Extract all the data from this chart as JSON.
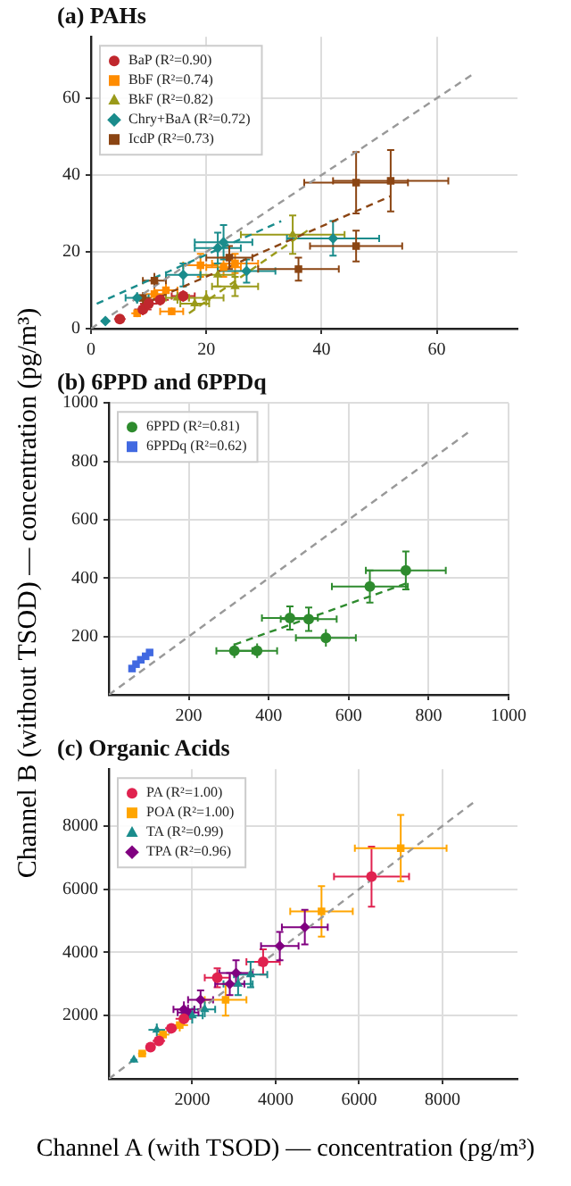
{
  "chart_data": [
    {
      "type": "scatter",
      "title": "(a) PAHs",
      "xlim": [
        0,
        74
      ],
      "ylim": [
        0,
        76
      ],
      "xticks": [
        0,
        20,
        40,
        60
      ],
      "yticks": [
        0,
        20,
        40,
        60
      ],
      "grid": true,
      "legend": "top left",
      "series": [
        {
          "name": "BaP (R²=0.90)",
          "color": "#c0272d",
          "marker": "circle",
          "x": [
            5,
            9,
            10,
            12,
            16
          ],
          "values": [
            2.5,
            5,
            6.5,
            7.5,
            8.5
          ],
          "errors": [
            1,
            1.5,
            1.5,
            1.5,
            1.5
          ],
          "xerrors": [
            1,
            1.5,
            1.5,
            1.5,
            2
          ]
        },
        {
          "name": "BbF (R²=0.74)",
          "color": "#ff8c00",
          "marker": "square",
          "x": [
            8,
            11,
            13,
            14,
            19,
            23,
            25
          ],
          "values": [
            4,
            9,
            10,
            4.5,
            16.5,
            16,
            17
          ],
          "errors": [
            1,
            1.5,
            2,
            1,
            3,
            2.5,
            2.5
          ],
          "xerrors": [
            1,
            1.5,
            2,
            2,
            3,
            3,
            4
          ]
        },
        {
          "name": "BkF (R²=0.82)",
          "color": "#9a9a1a",
          "marker": "triangle",
          "x": [
            15,
            18,
            20,
            22,
            25,
            35
          ],
          "values": [
            8,
            6.5,
            8,
            14,
            11,
            24.5
          ],
          "errors": [
            1.5,
            1.5,
            2,
            3,
            2.5,
            5
          ],
          "xerrors": [
            2,
            2.5,
            3,
            3,
            4,
            9
          ]
        },
        {
          "name": "Chry+BaA (R²=0.72)",
          "color": "#1a8c8c",
          "marker": "diamond",
          "x": [
            2.5,
            8,
            16,
            22,
            23,
            27,
            42
          ],
          "values": [
            2,
            8,
            14,
            21,
            22.5,
            15,
            23.5
          ],
          "errors": [
            0.8,
            1.5,
            3,
            4,
            4.5,
            3,
            4.5
          ],
          "xerrors": [
            0.8,
            2,
            3,
            4,
            5,
            5,
            8
          ]
        },
        {
          "name": "IcdP (R²=0.73)",
          "color": "#8b4513",
          "marker": "square",
          "x": [
            9,
            11,
            24,
            36,
            46,
            46,
            52
          ],
          "values": [
            8,
            12.5,
            18.5,
            15.5,
            21.5,
            38,
            38.5
          ],
          "errors": [
            1.5,
            2,
            3,
            3,
            4,
            8,
            8
          ],
          "xerrors": [
            1.5,
            2,
            4,
            7,
            8,
            9,
            10
          ]
        },
        {
          "type": "line",
          "color": "#1a8c8c",
          "line_style": "dashed",
          "x": [
            1,
            33
          ],
          "values": [
            6.5,
            28
          ]
        },
        {
          "type": "line",
          "color": "#8b4513",
          "line_style": "dashed",
          "x": [
            10,
            52
          ],
          "values": [
            7,
            34.5
          ]
        },
        {
          "type": "line",
          "color": "#9a9a1a",
          "line_style": "dashed",
          "x": [
            17,
            38
          ],
          "values": [
            4,
            26
          ]
        },
        {
          "type": "line",
          "color": "#999999",
          "line_style": "dashed",
          "x": [
            0,
            66
          ],
          "values": [
            0,
            66
          ]
        }
      ]
    },
    {
      "type": "scatter",
      "title": "(b) 6PPD and 6PPDq",
      "ylabel": "Channel B (without TSOD) — concentration (pg/m³)",
      "xlim": [
        0,
        1000
      ],
      "ylim": [
        0,
        1000
      ],
      "xticks": [
        200,
        400,
        600,
        800,
        1000
      ],
      "yticks": [
        200,
        400,
        600,
        800,
        1000
      ],
      "grid": true,
      "legend": "top left",
      "series": [
        {
          "name": "6PPD (R²=0.81)",
          "color": "#2e8b2e",
          "marker": "circle",
          "x": [
            314,
            371,
            453,
            500,
            543,
            653,
            743
          ],
          "values": [
            151,
            151,
            263,
            259,
            195,
            371,
            426
          ],
          "errors": [
            25,
            25,
            40,
            40,
            30,
            55,
            65
          ],
          "xerrors": [
            45,
            50,
            70,
            70,
            75,
            95,
            100
          ]
        },
        {
          "name": "6PPDq (R²=0.62)",
          "color": "#4169e1",
          "marker": "square",
          "x": [
            58,
            68,
            80,
            92,
            102
          ],
          "values": [
            90,
            105,
            120,
            132,
            145
          ],
          "errors": [
            10,
            10,
            10,
            10,
            10
          ],
          "xerrors": [
            8,
            8,
            8,
            8,
            8
          ]
        },
        {
          "type": "line",
          "color": "#2e8b2e",
          "line_style": "dashed",
          "x": [
            314,
            749
          ],
          "values": [
            172,
            384
          ]
        },
        {
          "type": "line",
          "color": "#999999",
          "line_style": "dashed",
          "x": [
            0,
            900
          ],
          "values": [
            0,
            900
          ]
        }
      ]
    },
    {
      "type": "scatter",
      "title": "(c) Organic Acids",
      "xlabel": "Channel A (with TSOD) — concentration (pg/m³)",
      "xlim": [
        0,
        9800
      ],
      "ylim": [
        0,
        9800
      ],
      "xticks": [
        2000,
        4000,
        6000,
        8000
      ],
      "yticks": [
        2000,
        4000,
        6000,
        8000
      ],
      "grid": true,
      "legend": "top left",
      "series": [
        {
          "name": "PA (R²=1.00)",
          "color": "#e0224f",
          "marker": "circle",
          "x": [
            1000,
            1200,
            1500,
            1800,
            2600,
            3700,
            6300
          ],
          "values": [
            1000,
            1200,
            1600,
            1900,
            3200,
            3700,
            6400
          ],
          "errors": [
            100,
            150,
            150,
            200,
            300,
            400,
            950
          ],
          "xerrors": [
            100,
            150,
            150,
            200,
            300,
            400,
            900
          ]
        },
        {
          "name": "POA (R²=1.00)",
          "color": "#ffa500",
          "marker": "square",
          "x": [
            800,
            1300,
            1700,
            2800,
            5100,
            7000
          ],
          "values": [
            800,
            1400,
            1700,
            2500,
            5300,
            7300
          ],
          "errors": [
            100,
            150,
            200,
            500,
            800,
            1050
          ],
          "xerrors": [
            100,
            150,
            200,
            500,
            750,
            1100
          ]
        },
        {
          "name": "TA (R²=0.99)",
          "color": "#1a8c8c",
          "marker": "triangle",
          "x": [
            600,
            1150,
            2000,
            2300,
            3100,
            3400
          ],
          "values": [
            600,
            1550,
            2000,
            2200,
            3000,
            3300
          ],
          "errors": [
            80,
            200,
            250,
            250,
            350,
            400
          ],
          "xerrors": [
            80,
            200,
            250,
            250,
            350,
            400
          ]
        },
        {
          "name": "TPA (R²=0.96)",
          "color": "#800080",
          "marker": "diamond",
          "x": [
            1800,
            1900,
            2200,
            2900,
            3050,
            4100,
            4700
          ],
          "values": [
            2200,
            2100,
            2500,
            3000,
            3350,
            4200,
            4800
          ],
          "errors": [
            250,
            250,
            300,
            350,
            400,
            450,
            550
          ],
          "xerrors": [
            250,
            250,
            300,
            350,
            400,
            450,
            550
          ]
        },
        {
          "type": "line",
          "color": "#999999",
          "line_style": "dashed",
          "x": [
            0,
            8800
          ],
          "values": [
            0,
            8800
          ]
        }
      ]
    }
  ]
}
